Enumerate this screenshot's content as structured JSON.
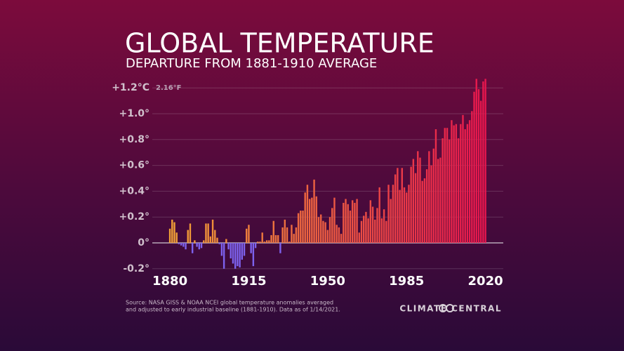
{
  "chart_data": {
    "type": "bar",
    "title": "GLOBAL TEMPERATURE",
    "subtitle": "DEPARTURE FROM 1881-1910 AVERAGE",
    "y_annotation": "2.16°F",
    "source": [
      "Source: NASA GISS & NOAA NCEI global temperature anomalies averaged",
      "and adjusted to early industrial baseline (1881-1910). Data as of 1/14/2021."
    ],
    "brand": "CLIMATE CENTRAL",
    "x": [
      1880,
      1881,
      1882,
      1883,
      1884,
      1885,
      1886,
      1887,
      1888,
      1889,
      1890,
      1891,
      1892,
      1893,
      1894,
      1895,
      1896,
      1897,
      1898,
      1899,
      1900,
      1901,
      1902,
      1903,
      1904,
      1905,
      1906,
      1907,
      1908,
      1909,
      1910,
      1911,
      1912,
      1913,
      1914,
      1915,
      1916,
      1917,
      1918,
      1919,
      1920,
      1921,
      1922,
      1923,
      1924,
      1925,
      1926,
      1927,
      1928,
      1929,
      1930,
      1931,
      1932,
      1933,
      1934,
      1935,
      1936,
      1937,
      1938,
      1939,
      1940,
      1941,
      1942,
      1943,
      1944,
      1945,
      1946,
      1947,
      1948,
      1949,
      1950,
      1951,
      1952,
      1953,
      1954,
      1955,
      1956,
      1957,
      1958,
      1959,
      1960,
      1961,
      1962,
      1963,
      1964,
      1965,
      1966,
      1967,
      1968,
      1969,
      1970,
      1971,
      1972,
      1973,
      1974,
      1975,
      1976,
      1977,
      1978,
      1979,
      1980,
      1981,
      1982,
      1983,
      1984,
      1985,
      1986,
      1987,
      1988,
      1989,
      1990,
      1991,
      1992,
      1993,
      1994,
      1995,
      1996,
      1997,
      1998,
      1999,
      2000,
      2001,
      2002,
      2003,
      2004,
      2005,
      2006,
      2007,
      2008,
      2009,
      2010,
      2011,
      2012,
      2013,
      2014,
      2015,
      2016,
      2017,
      2018,
      2019,
      2020
    ],
    "values": [
      0.11,
      0.18,
      0.16,
      0.08,
      -0.01,
      -0.02,
      -0.03,
      -0.05,
      0.1,
      0.15,
      -0.08,
      0.02,
      -0.03,
      -0.05,
      -0.04,
      0.02,
      0.15,
      0.15,
      0.05,
      0.18,
      0.1,
      0.04,
      -0.01,
      -0.1,
      -0.2,
      0.03,
      -0.05,
      -0.12,
      -0.16,
      -0.2,
      -0.18,
      -0.19,
      -0.13,
      -0.1,
      0.11,
      0.14,
      -0.08,
      -0.18,
      -0.04,
      0.01,
      0.01,
      0.08,
      0.01,
      0.02,
      0.02,
      0.06,
      0.17,
      0.06,
      0.06,
      -0.08,
      0.12,
      0.18,
      0.12,
      0.01,
      0.14,
      0.07,
      0.12,
      0.23,
      0.25,
      0.25,
      0.39,
      0.45,
      0.34,
      0.35,
      0.49,
      0.36,
      0.2,
      0.22,
      0.17,
      0.16,
      0.1,
      0.2,
      0.27,
      0.35,
      0.14,
      0.12,
      0.07,
      0.31,
      0.34,
      0.3,
      0.25,
      0.33,
      0.31,
      0.34,
      0.08,
      0.17,
      0.21,
      0.24,
      0.19,
      0.33,
      0.28,
      0.18,
      0.27,
      0.43,
      0.19,
      0.26,
      0.17,
      0.45,
      0.34,
      0.45,
      0.53,
      0.58,
      0.41,
      0.58,
      0.43,
      0.39,
      0.45,
      0.59,
      0.65,
      0.54,
      0.71,
      0.66,
      0.48,
      0.5,
      0.57,
      0.71,
      0.6,
      0.73,
      0.88,
      0.65,
      0.66,
      0.81,
      0.89,
      0.89,
      0.8,
      0.95,
      0.91,
      0.92,
      0.81,
      0.92,
      0.99,
      0.88,
      0.92,
      0.95,
      1.02,
      1.17,
      1.27,
      1.19,
      1.1,
      1.25,
      1.27
    ],
    "colors": {
      "negative": "#7d62ee",
      "positive_early": "#f2a236",
      "positive_late": "#e8164e"
    },
    "xlim": [
      1875,
      2029
    ],
    "xticks": [
      1880,
      1915,
      1950,
      1985,
      2020
    ],
    "ylim": [
      -0.25,
      1.3
    ],
    "yticks": [
      {
        "value": -0.2,
        "label": "-0.2°"
      },
      {
        "value": 0,
        "label": "0°"
      },
      {
        "value": 0.2,
        "label": "+0.2°"
      },
      {
        "value": 0.4,
        "label": "+0.4°"
      },
      {
        "value": 0.6,
        "label": "+0.6°"
      },
      {
        "value": 0.8,
        "label": "+0.8°"
      },
      {
        "value": 1.0,
        "label": "+1.0°"
      },
      {
        "value": 1.2,
        "label": "+1.2°C"
      }
    ],
    "grid": true
  }
}
